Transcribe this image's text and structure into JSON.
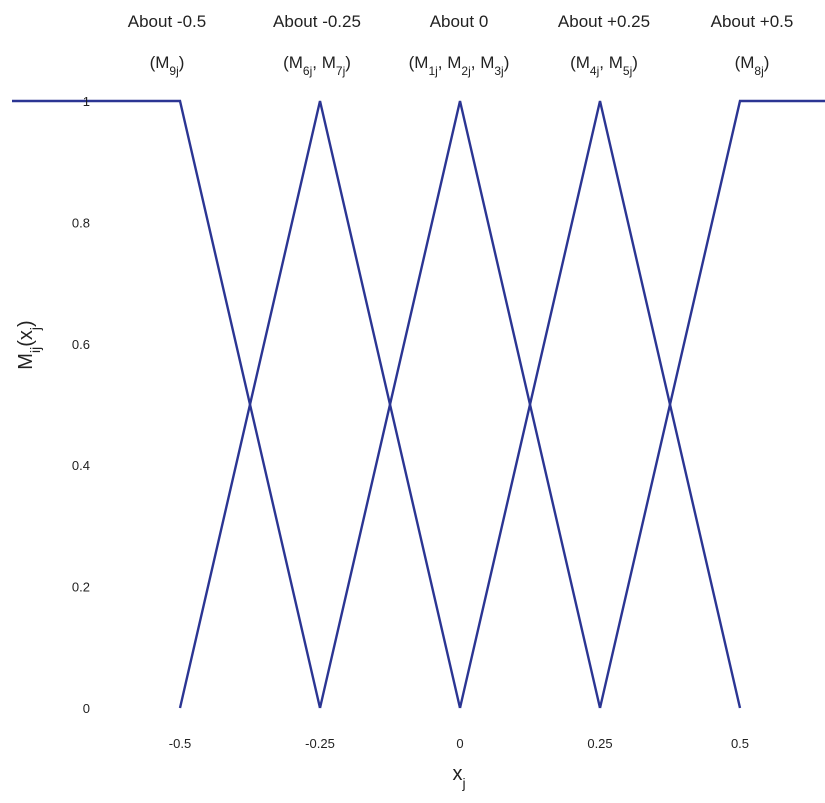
{
  "chart_data": {
    "type": "line",
    "title": "",
    "xlabel": {
      "base": "x",
      "sub": "j"
    },
    "ylabel": {
      "base": "M",
      "sub": "ij",
      "arg_base": "x",
      "arg_sub": "j"
    },
    "xlim": [
      -0.8,
      0.75
    ],
    "ylim": [
      0,
      1
    ],
    "x_ticks": [
      "-0.5",
      "-0.25",
      "0",
      "0.25",
      "0.5"
    ],
    "x_tick_values": [
      -0.5,
      -0.25,
      0,
      0.25,
      0.5
    ],
    "y_ticks": [
      "0",
      "0.2",
      "0.4",
      "0.6",
      "0.8",
      "1"
    ],
    "y_tick_values": [
      0,
      0.2,
      0.4,
      0.6,
      0.8,
      1
    ],
    "grid": false,
    "line_color": "#2b3593",
    "series": [
      {
        "name": "About -0.5",
        "x": [
          -0.8,
          -0.5,
          -0.25
        ],
        "y": [
          1,
          1,
          0
        ]
      },
      {
        "name": "About -0.25",
        "x": [
          -0.5,
          -0.25,
          0
        ],
        "y": [
          0,
          1,
          0
        ]
      },
      {
        "name": "About 0",
        "x": [
          -0.25,
          0,
          0.25
        ],
        "y": [
          0,
          1,
          0
        ]
      },
      {
        "name": "About +0.25",
        "x": [
          0,
          0.25,
          0.5
        ],
        "y": [
          0,
          1,
          0
        ]
      },
      {
        "name": "About +0.5",
        "x": [
          0.25,
          0.5,
          0.75
        ],
        "y": [
          0,
          1,
          1
        ]
      }
    ],
    "set_labels": [
      {
        "heading": "About -0.5",
        "members": [
          {
            "base": "M",
            "sub": "9j"
          }
        ],
        "x": -0.5
      },
      {
        "heading": "About -0.25",
        "members": [
          {
            "base": "M",
            "sub": "6j"
          },
          {
            "base": "M",
            "sub": "7j"
          }
        ],
        "x": -0.25
      },
      {
        "heading": "About 0",
        "members": [
          {
            "base": "M",
            "sub": "1j"
          },
          {
            "base": "M",
            "sub": "2j"
          },
          {
            "base": "M",
            "sub": "3j"
          }
        ],
        "x": 0
      },
      {
        "heading": "About +0.25",
        "members": [
          {
            "base": "M",
            "sub": "4j"
          },
          {
            "base": "M",
            "sub": "5j"
          }
        ],
        "x": 0.25
      },
      {
        "heading": "About +0.5",
        "members": [
          {
            "base": "M",
            "sub": "8j"
          }
        ],
        "x": 0.5
      }
    ]
  }
}
